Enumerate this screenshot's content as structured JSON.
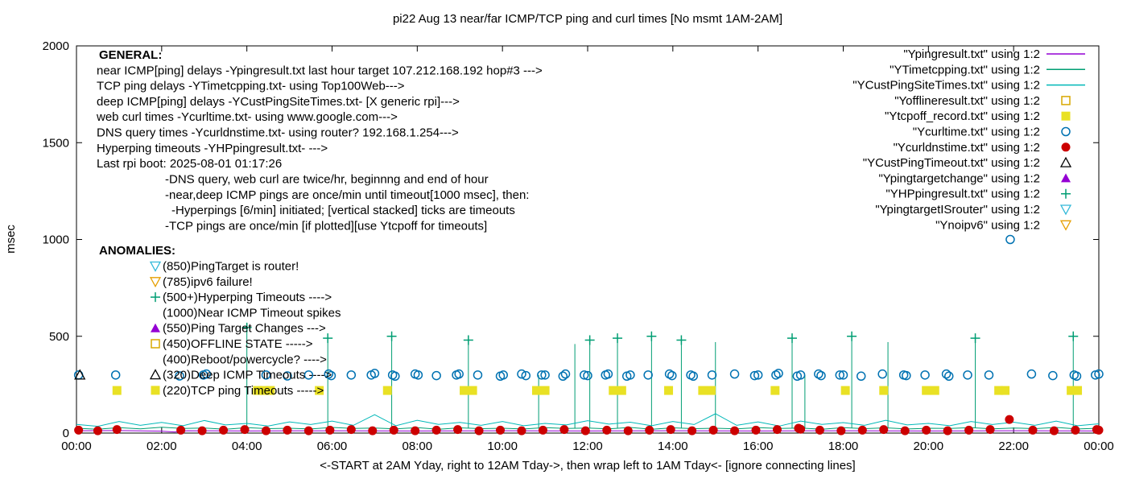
{
  "chart_data": {
    "type": "scatter",
    "title": "pi22 Aug 13  near/far ICMP/TCP ping and curl times [No msmt 1AM-2AM]",
    "xlabel": "<-START at 2AM Yday, right to 12AM Tday->, then wrap left to 1AM Tday<- [ignore connecting lines]",
    "ylabel": "msec",
    "xlim": [
      0,
      24
    ],
    "ylim": [
      0,
      2000
    ],
    "grid": false,
    "legend_position": "top-right-inside",
    "xtick_hours": [
      0,
      2,
      4,
      6,
      8,
      10,
      12,
      14,
      16,
      18,
      20,
      22,
      24
    ],
    "xtick_labels": [
      "00:00",
      "02:00",
      "04:00",
      "06:00",
      "08:00",
      "10:00",
      "12:00",
      "14:00",
      "16:00",
      "18:00",
      "20:00",
      "22:00",
      "00:00"
    ],
    "yticks": [
      0,
      500,
      1000,
      1500,
      2000
    ],
    "series": [
      {
        "label": "\"Ypingresult.txt\" using 1:2",
        "kind": "line",
        "color": "#9400d3",
        "points": [
          [
            0,
            12
          ],
          [
            1,
            13
          ],
          [
            2,
            10
          ],
          [
            2.3,
            6
          ],
          [
            2.6,
            12
          ],
          [
            4,
            11
          ],
          [
            6,
            12
          ],
          [
            8,
            11
          ],
          [
            10,
            12
          ],
          [
            12,
            11
          ],
          [
            14,
            12
          ],
          [
            16,
            11
          ],
          [
            18,
            12
          ],
          [
            20,
            11
          ],
          [
            22,
            12
          ],
          [
            24,
            11
          ]
        ]
      },
      {
        "label": "\"YTimetcpping.txt\" using 1:2",
        "kind": "line",
        "color": "#009e73",
        "y_series": {
          "start": 0,
          "step": 0.5,
          "values": [
            25,
            20,
            28,
            22,
            30,
            24,
            26,
            20,
            28,
            23,
            25,
            21,
            29,
            24,
            26,
            22,
            28,
            20,
            27,
            23,
            25,
            21,
            28,
            24,
            26,
            22,
            29,
            20,
            27,
            23,
            25,
            22,
            28,
            24,
            26,
            20,
            28,
            23,
            27,
            21,
            25,
            24,
            28,
            22,
            26,
            23,
            29,
            21,
            25
          ]
        },
        "spike_base": 25,
        "spikes": [
          [
            4.0,
            545
          ],
          [
            5.9,
            490
          ],
          [
            7.4,
            500
          ],
          [
            9.2,
            480
          ],
          [
            10.85,
            300
          ],
          [
            11.7,
            460
          ],
          [
            12.05,
            480
          ],
          [
            12.7,
            490
          ],
          [
            13.5,
            500
          ],
          [
            14.2,
            480
          ],
          [
            15.0,
            470
          ],
          [
            16.8,
            490
          ],
          [
            17.1,
            300
          ],
          [
            18.2,
            500
          ],
          [
            19.05,
            470
          ],
          [
            21.1,
            490
          ],
          [
            23.4,
            500
          ]
        ]
      },
      {
        "label": "\"YCustPingSiteTimes.txt\" using 1:2",
        "kind": "line",
        "color": "#00b8b8",
        "y_series": {
          "start": 0,
          "step": 0.5,
          "values": [
            45,
            35,
            60,
            40,
            55,
            38,
            65,
            42,
            50,
            36,
            58,
            44,
            62,
            40,
            95,
            38,
            66,
            45,
            55,
            40,
            60,
            38,
            50,
            42,
            64,
            46,
            56,
            38,
            60,
            44,
            100,
            40,
            58,
            36,
            62,
            45,
            54,
            40,
            66,
            42,
            50,
            38,
            60,
            44,
            56,
            40,
            62,
            38,
            48
          ]
        }
      },
      {
        "label": "\"Yofflineresult.txt\" using 1:2",
        "kind": "square-open",
        "color": "#d8a800",
        "points": []
      },
      {
        "label": "\"Ytcpoff_record.txt\" using 1:2",
        "kind": "square-filled",
        "color": "#e9e124",
        "points": [
          [
            0.95,
            220
          ],
          [
            4.25,
            220
          ],
          [
            4.4,
            220
          ],
          [
            4.55,
            220
          ],
          [
            5.7,
            220
          ],
          [
            7.3,
            220
          ],
          [
            9.1,
            220
          ],
          [
            9.3,
            220
          ],
          [
            10.8,
            220
          ],
          [
            11.0,
            220
          ],
          [
            12.6,
            220
          ],
          [
            12.8,
            220
          ],
          [
            13.9,
            220
          ],
          [
            14.7,
            220
          ],
          [
            14.9,
            220
          ],
          [
            16.4,
            220
          ],
          [
            18.05,
            220
          ],
          [
            18.95,
            220
          ],
          [
            19.95,
            220
          ],
          [
            20.15,
            220
          ],
          [
            21.65,
            220
          ],
          [
            21.8,
            220
          ],
          [
            23.35,
            220
          ],
          [
            23.5,
            220
          ]
        ]
      },
      {
        "label": "\"Ycurltime.txt\" using 1:2",
        "kind": "circle-open",
        "color": "#0072b2",
        "points": [
          [
            0.05,
            300
          ],
          [
            0.92,
            300
          ],
          [
            2.42,
            295
          ],
          [
            2.98,
            300
          ],
          [
            3.05,
            305
          ],
          [
            4.45,
            300
          ],
          [
            4.95,
            295
          ],
          [
            5.45,
            300
          ],
          [
            5.92,
            305
          ],
          [
            5.98,
            297
          ],
          [
            6.45,
            300
          ],
          [
            6.92,
            300
          ],
          [
            7.0,
            308
          ],
          [
            7.42,
            300
          ],
          [
            7.48,
            294
          ],
          [
            7.95,
            305
          ],
          [
            8.02,
            300
          ],
          [
            8.45,
            297
          ],
          [
            8.92,
            300
          ],
          [
            8.98,
            305
          ],
          [
            9.42,
            300
          ],
          [
            9.95,
            294
          ],
          [
            10.02,
            300
          ],
          [
            10.45,
            305
          ],
          [
            10.55,
            297
          ],
          [
            10.92,
            300
          ],
          [
            11.0,
            300
          ],
          [
            11.42,
            294
          ],
          [
            11.48,
            305
          ],
          [
            11.92,
            300
          ],
          [
            12.0,
            297
          ],
          [
            12.42,
            300
          ],
          [
            12.48,
            305
          ],
          [
            12.92,
            294
          ],
          [
            13.0,
            300
          ],
          [
            13.42,
            300
          ],
          [
            13.92,
            305
          ],
          [
            13.98,
            297
          ],
          [
            14.42,
            300
          ],
          [
            14.48,
            294
          ],
          [
            14.92,
            300
          ],
          [
            15.45,
            305
          ],
          [
            15.92,
            297
          ],
          [
            16.0,
            300
          ],
          [
            16.42,
            300
          ],
          [
            16.48,
            308
          ],
          [
            16.92,
            294
          ],
          [
            17.0,
            300
          ],
          [
            17.42,
            305
          ],
          [
            17.48,
            297
          ],
          [
            17.92,
            300
          ],
          [
            18.0,
            300
          ],
          [
            18.42,
            294
          ],
          [
            18.92,
            305
          ],
          [
            19.42,
            300
          ],
          [
            19.48,
            297
          ],
          [
            19.92,
            300
          ],
          [
            20.42,
            305
          ],
          [
            20.48,
            294
          ],
          [
            20.92,
            300
          ],
          [
            21.42,
            300
          ],
          [
            21.92,
            1000
          ],
          [
            22.42,
            305
          ],
          [
            22.92,
            297
          ],
          [
            23.42,
            300
          ],
          [
            23.48,
            294
          ],
          [
            23.92,
            300
          ],
          [
            24.0,
            305
          ]
        ]
      },
      {
        "label": "\"Ycurldnstime.txt\" using 1:2",
        "kind": "circle-filled",
        "color": "#cc0000",
        "points": [
          [
            0.05,
            15
          ],
          [
            0.5,
            12
          ],
          [
            0.95,
            18
          ],
          [
            2.45,
            15
          ],
          [
            2.95,
            12
          ],
          [
            3.45,
            15
          ],
          [
            3.95,
            18
          ],
          [
            4.45,
            12
          ],
          [
            4.95,
            15
          ],
          [
            5.45,
            12
          ],
          [
            5.95,
            15
          ],
          [
            6.45,
            18
          ],
          [
            6.95,
            12
          ],
          [
            7.45,
            15
          ],
          [
            7.95,
            12
          ],
          [
            8.45,
            15
          ],
          [
            8.95,
            18
          ],
          [
            9.45,
            12
          ],
          [
            9.95,
            15
          ],
          [
            10.45,
            12
          ],
          [
            10.95,
            15
          ],
          [
            11.45,
            18
          ],
          [
            11.95,
            12
          ],
          [
            12.45,
            15
          ],
          [
            12.95,
            12
          ],
          [
            13.45,
            15
          ],
          [
            13.95,
            18
          ],
          [
            14.45,
            12
          ],
          [
            14.95,
            15
          ],
          [
            15.45,
            12
          ],
          [
            15.95,
            15
          ],
          [
            16.45,
            18
          ],
          [
            16.95,
            25
          ],
          [
            17.0,
            20
          ],
          [
            17.45,
            15
          ],
          [
            17.95,
            12
          ],
          [
            18.45,
            15
          ],
          [
            18.95,
            18
          ],
          [
            19.45,
            12
          ],
          [
            19.95,
            15
          ],
          [
            20.45,
            12
          ],
          [
            20.95,
            15
          ],
          [
            21.45,
            18
          ],
          [
            21.9,
            70
          ],
          [
            22.45,
            15
          ],
          [
            22.95,
            12
          ],
          [
            23.45,
            15
          ],
          [
            23.95,
            18
          ],
          [
            24.0,
            15
          ]
        ]
      },
      {
        "label": "\"YCustPingTimeout.txt\" using 1:2",
        "kind": "triangle-open",
        "color": "#000000",
        "points": [
          [
            0.08,
            300
          ]
        ]
      },
      {
        "label": "\"Ypingtargetchange\" using 1:2",
        "kind": "triangle-filled",
        "color": "#9400d3",
        "points": []
      },
      {
        "label": "\"YHPpingresult.txt\" using 1:2",
        "kind": "plus",
        "color": "#009e73",
        "points": [
          [
            4.0,
            545
          ],
          [
            5.9,
            490
          ],
          [
            7.4,
            500
          ],
          [
            9.2,
            480
          ],
          [
            12.05,
            480
          ],
          [
            12.7,
            490
          ],
          [
            13.5,
            500
          ],
          [
            14.2,
            480
          ],
          [
            16.8,
            490
          ],
          [
            18.2,
            500
          ],
          [
            21.1,
            490
          ],
          [
            23.4,
            500
          ]
        ]
      },
      {
        "label": "\"YpingtargetISrouter\" using 1:2",
        "kind": "triangle-down-open",
        "color": "#30b8d8",
        "points": []
      },
      {
        "label": "\"Ynoipv6\" using 1:2",
        "kind": "triangle-down-open",
        "color": "#e69f00",
        "points": []
      }
    ]
  },
  "general": {
    "header": "GENERAL:",
    "lines": [
      "near ICMP[ping] delays -Ypingresult.txt last hour target 107.212.168.192 hop#3 --->",
      "TCP ping delays -YTimetcpping.txt- using Top100Web--->",
      "deep ICMP[ping] delays -YCustPingSiteTimes.txt- [X generic rpi]--->",
      "web curl times -Ycurltime.txt- using www.google.com--->",
      "DNS query times -Ycurldnstime.txt- using router? 192.168.1.254--->",
      "Hyperping timeouts -YHPpingresult.txt- --->",
      "Last rpi boot: 2025-08-01 01:17:26"
    ],
    "notes": [
      "-DNS query, web curl are twice/hr, beginnng and end of hour",
      "-near,deep ICMP pings are once/min until timeout[1000 msec], then:",
      "-Hyperpings [6/min] initiated; [vertical stacked] ticks are timeouts",
      "-TCP pings are once/min [if plotted][use Ytcpoff for timeouts]"
    ]
  },
  "anomalies": {
    "header": "ANOMALIES:",
    "items": [
      {
        "marker": "triangle-down-open",
        "color": "#30b8d8",
        "text": "(850)PingTarget is router!"
      },
      {
        "marker": "triangle-down-open",
        "color": "#e69f00",
        "text": "(785)ipv6 failure!"
      },
      {
        "marker": "plus",
        "color": "#009e73",
        "text": "(500+)Hyperping Timeouts ---->"
      },
      {
        "marker": null,
        "color": null,
        "text": "(1000)Near ICMP Timeout spikes"
      },
      {
        "marker": "triangle-filled",
        "color": "#9400d3",
        "text": "(550)Ping Target Changes --->"
      },
      {
        "marker": "square-open",
        "color": "#d8a800",
        "text": "(450)OFFLINE STATE ----->"
      },
      {
        "marker": null,
        "color": null,
        "text": "(400)Reboot/powercycle? ---->"
      },
      {
        "marker": "triangle-open",
        "color": "#000000",
        "text": "(320)Deep ICMP Timeouts ---->"
      },
      {
        "marker": "square-filled",
        "color": "#e9e124",
        "text": "(220)TCP ping Timeouts ----->"
      }
    ]
  }
}
